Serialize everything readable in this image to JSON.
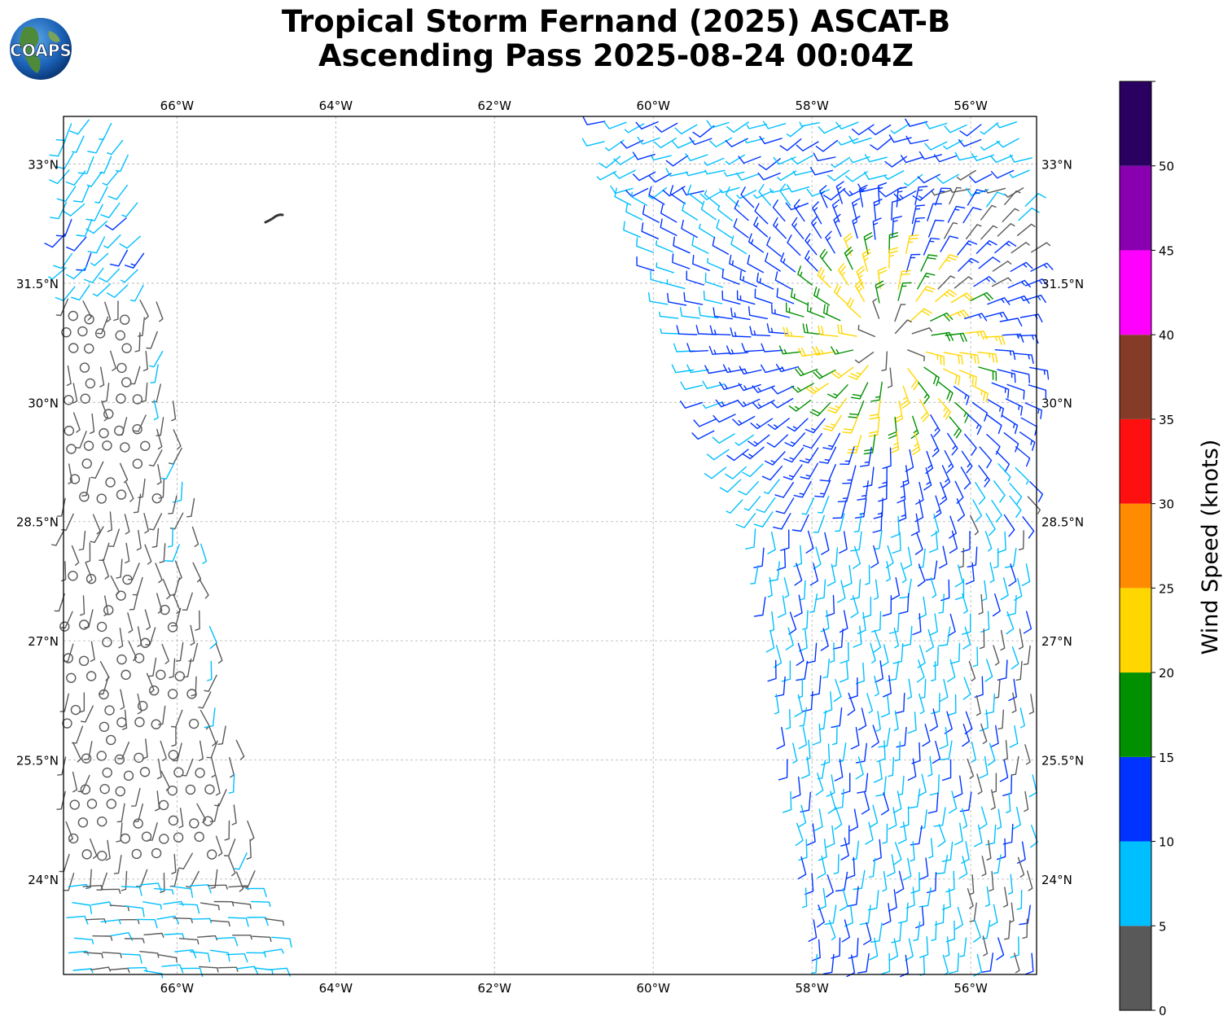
{
  "header": {
    "title_line1": "Tropical Storm Fernand (2025) ASCAT-B",
    "title_line2": "Ascending Pass 2025-08-24 00:04Z",
    "logo_text": "COAPS"
  },
  "axes": {
    "lon_ticks": [
      "66°W",
      "64°W",
      "62°W",
      "60°W",
      "58°W",
      "56°W"
    ],
    "lon_values": [
      -66,
      -64,
      -62,
      -60,
      -58,
      -56
    ],
    "lat_ticks": [
      "33°N",
      "31.5°N",
      "30°N",
      "28.5°N",
      "27°N",
      "25.5°N",
      "24°N"
    ],
    "lat_values": [
      33,
      31.5,
      30,
      28.5,
      27,
      25.5,
      24
    ],
    "lon_range": [
      -67.43,
      -55.17
    ],
    "lat_range": [
      22.8,
      33.6
    ]
  },
  "colorbar": {
    "label": "Wind Speed (knots)",
    "ticks": [
      "0",
      "5",
      "10",
      "15",
      "20",
      "25",
      "30",
      "35",
      "40",
      "45",
      "50"
    ],
    "bins": [
      {
        "from": 0,
        "to": 5,
        "color": "#595959"
      },
      {
        "from": 5,
        "to": 10,
        "color": "#00bfff"
      },
      {
        "from": 10,
        "to": 15,
        "color": "#0033ff"
      },
      {
        "from": 15,
        "to": 20,
        "color": "#009000"
      },
      {
        "from": 20,
        "to": 25,
        "color": "#ffd700"
      },
      {
        "from": 25,
        "to": 30,
        "color": "#ff8c00"
      },
      {
        "from": 30,
        "to": 35,
        "color": "#ff1010"
      },
      {
        "from": 35,
        "to": 40,
        "color": "#843c28"
      },
      {
        "from": 40,
        "to": 45,
        "color": "#ff00ff"
      },
      {
        "from": 45,
        "to": 50,
        "color": "#8800b0"
      },
      {
        "from": 50,
        "to": 55,
        "color": "#2a0060"
      }
    ]
  }
}
